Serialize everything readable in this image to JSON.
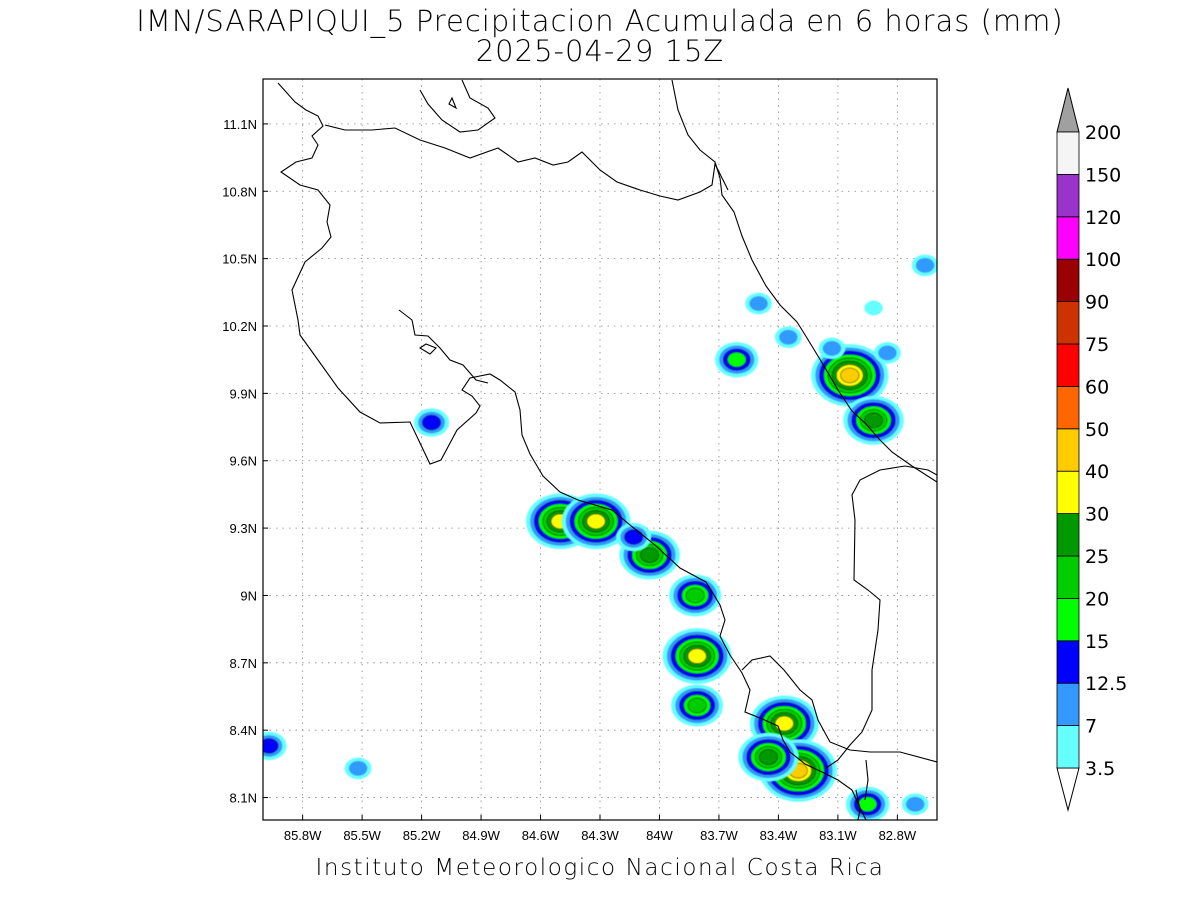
{
  "title": "IMN/SARAPIQUI_5 Precipitacion Acumulada en 6 horas (mm)",
  "subtitle": "2025-04-29 15Z",
  "footer": "Instituto Meteorologico Nacional Costa Rica",
  "map": {
    "lon_range": [
      -86.0,
      -82.6
    ],
    "lat_range": [
      8.0,
      11.3
    ],
    "lon_ticks": [
      {
        "value": -85.8,
        "label": "85.8W"
      },
      {
        "value": -85.5,
        "label": "85.5W"
      },
      {
        "value": -85.2,
        "label": "85.2W"
      },
      {
        "value": -84.9,
        "label": "84.9W"
      },
      {
        "value": -84.6,
        "label": "84.6W"
      },
      {
        "value": -84.3,
        "label": "84.3W"
      },
      {
        "value": -84.0,
        "label": "84W"
      },
      {
        "value": -83.7,
        "label": "83.7W"
      },
      {
        "value": -83.4,
        "label": "83.4W"
      },
      {
        "value": -83.1,
        "label": "83.1W"
      },
      {
        "value": -82.8,
        "label": "82.8W"
      }
    ],
    "lat_ticks": [
      {
        "value": 8.1,
        "label": "8.1N"
      },
      {
        "value": 8.4,
        "label": "8.4N"
      },
      {
        "value": 8.7,
        "label": "8.7N"
      },
      {
        "value": 9.0,
        "label": "9N"
      },
      {
        "value": 9.3,
        "label": "9.3N"
      },
      {
        "value": 9.6,
        "label": "9.6N"
      },
      {
        "value": 9.9,
        "label": "9.9N"
      },
      {
        "value": 10.2,
        "label": "10.2N"
      },
      {
        "value": 10.5,
        "label": "10.5N"
      },
      {
        "value": 10.8,
        "label": "10.8N"
      },
      {
        "value": 11.1,
        "label": "11.1N"
      }
    ],
    "grid": "dotted",
    "precip_cells": [
      {
        "lon": -83.04,
        "lat": 9.98,
        "mm": 40
      },
      {
        "lon": -82.92,
        "lat": 9.78,
        "mm": 25
      },
      {
        "lon": -83.13,
        "lat": 10.1,
        "mm": 7
      },
      {
        "lon": -82.85,
        "lat": 10.08,
        "mm": 7
      },
      {
        "lon": -82.92,
        "lat": 10.28,
        "mm": 3.5
      },
      {
        "lon": -83.35,
        "lat": 10.15,
        "mm": 7
      },
      {
        "lon": -83.5,
        "lat": 10.3,
        "mm": 7
      },
      {
        "lon": -82.66,
        "lat": 10.47,
        "mm": 7
      },
      {
        "lon": -84.5,
        "lat": 9.33,
        "mm": 30
      },
      {
        "lon": -84.32,
        "lat": 9.33,
        "mm": 30
      },
      {
        "lon": -84.05,
        "lat": 9.18,
        "mm": 25
      },
      {
        "lon": -83.82,
        "lat": 9.0,
        "mm": 20
      },
      {
        "lon": -83.81,
        "lat": 8.73,
        "mm": 30
      },
      {
        "lon": -83.81,
        "lat": 8.51,
        "mm": 20
      },
      {
        "lon": -83.37,
        "lat": 8.43,
        "mm": 30
      },
      {
        "lon": -83.3,
        "lat": 8.22,
        "mm": 40
      },
      {
        "lon": -83.45,
        "lat": 8.28,
        "mm": 25
      },
      {
        "lon": -82.95,
        "lat": 8.07,
        "mm": 15
      },
      {
        "lon": -82.71,
        "lat": 8.07,
        "mm": 7
      },
      {
        "lon": -85.97,
        "lat": 8.33,
        "mm": 12.5
      },
      {
        "lon": -85.52,
        "lat": 8.23,
        "mm": 7
      },
      {
        "lon": -85.15,
        "lat": 9.77,
        "mm": 12.5
      },
      {
        "lon": -84.13,
        "lat": 9.26,
        "mm": 12.5
      },
      {
        "lon": -83.61,
        "lat": 10.05,
        "mm": 15
      }
    ]
  },
  "colorbar": {
    "levels": [
      "3.5",
      "7",
      "12.5",
      "15",
      "20",
      "25",
      "30",
      "40",
      "50",
      "60",
      "75",
      "90",
      "100",
      "120",
      "150",
      "200"
    ],
    "colors": [
      "#66ffff",
      "#3399ff",
      "#0000ff",
      "#00ff00",
      "#00cc00",
      "#009900",
      "#ffff00",
      "#ffcc00",
      "#ff6600",
      "#ff0000",
      "#cc3300",
      "#990000",
      "#ff00ff",
      "#9933cc",
      "#f5f5f5"
    ],
    "over_color": "#a0a0a0",
    "under_color": "#ffffff"
  }
}
